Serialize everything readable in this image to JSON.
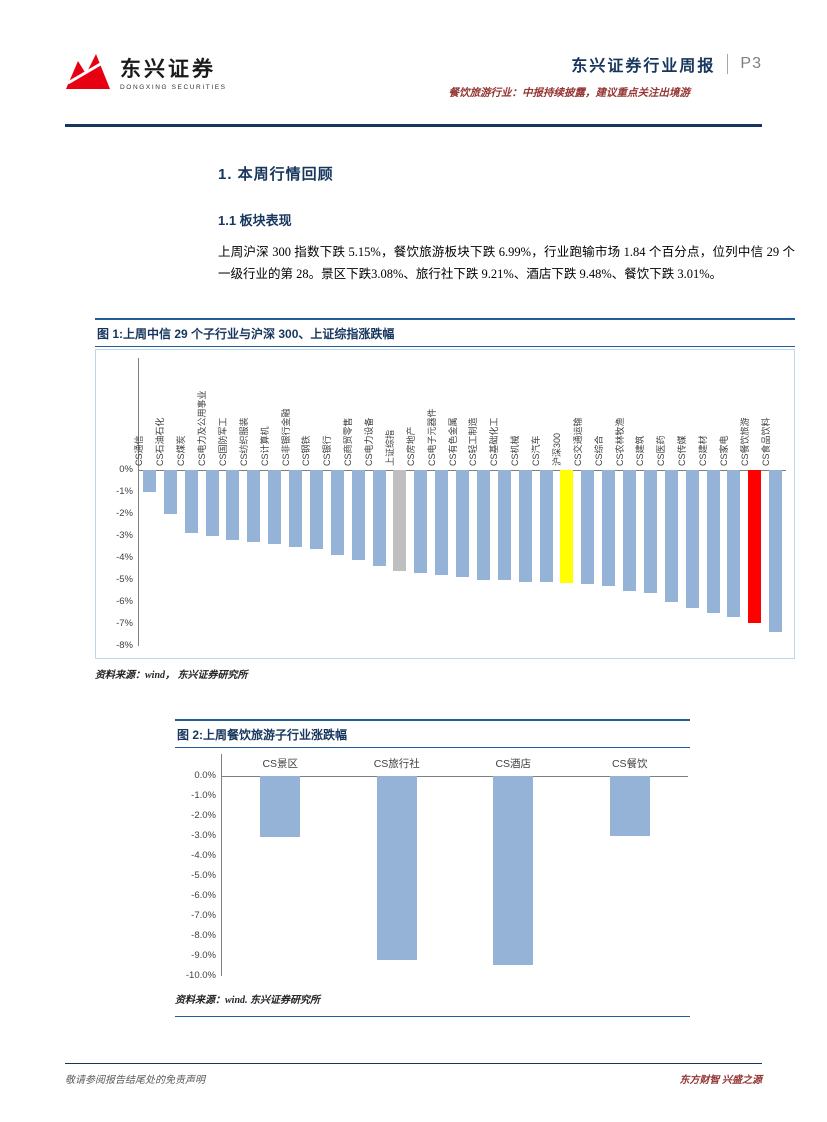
{
  "colors": {
    "navy": "#17365D",
    "rule_blue": "#1F5C99",
    "bar_blue": "#95B3D7",
    "bar_gray": "#BFBFBF",
    "bar_yellow": "#FFFF00",
    "bar_red": "#FF0000",
    "maroon": "#943634",
    "logo_red": "#E60012"
  },
  "header": {
    "logo_cn": "东兴证券",
    "logo_en": "DONGXING SECURITIES",
    "report_title": "东兴证券行业周报",
    "page_number": "P3",
    "subtitle": "餐饮旅游行业：中报持续披露，建议重点关注出境游"
  },
  "body": {
    "section_title": "1. 本周行情回顾",
    "subsection_title": "1.1 板块表现",
    "paragraph": "上周沪深 300 指数下跌 5.15%，餐饮旅游板块下跌 6.99%，行业跑输市场 1.84 个百分点，位列中信 29 个一级行业的第 28。景区下跌3.08%、旅行社下跌 9.21%、酒店下跌 9.48%、餐饮下跌 3.01%。"
  },
  "figures": {
    "fig1": {
      "caption": "图 1:上周中信 29 个子行业与沪深 300、上证综指涨跌幅",
      "source": "资料来源：wind， 东兴证券研究所"
    },
    "fig2": {
      "caption": "图 2:上周餐饮旅游子行业涨跌幅",
      "source": "资料来源：wind. 东兴证券研究所"
    }
  },
  "chart_data": [
    {
      "type": "bar",
      "title": "上周中信29个子行业与沪深300、上证综指涨跌幅",
      "categories": [
        "CS通信",
        "CS石油石化",
        "CS煤炭",
        "CS电力及公用事业",
        "CS国防军工",
        "CS纺织服装",
        "CS计算机",
        "CS非银行金融",
        "CS钢铁",
        "CS银行",
        "CS商贸零售",
        "CS电力设备",
        "上证综指",
        "CS房地产",
        "CS电子元器件",
        "CS有色金属",
        "CS轻工制造",
        "CS基础化工",
        "CS机械",
        "CS汽车",
        "沪深300",
        "CS交通运输",
        "CS综合",
        "CS农林牧渔",
        "CS建筑",
        "CS医药",
        "CS传媒",
        "CS建材",
        "CS家电",
        "CS餐饮旅游",
        "CS食品饮料"
      ],
      "values": [
        -1.0,
        -2.0,
        -2.9,
        -3.0,
        -3.2,
        -3.3,
        -3.4,
        -3.5,
        -3.6,
        -3.9,
        -4.1,
        -4.4,
        -4.6,
        -4.7,
        -4.8,
        -4.9,
        -5.0,
        -5.0,
        -5.1,
        -5.1,
        -5.15,
        -5.2,
        -5.3,
        -5.5,
        -5.6,
        -6.0,
        -6.3,
        -6.5,
        -6.7,
        -6.99,
        -7.4
      ],
      "unit": "%",
      "default_color": "#95B3D7",
      "color_overrides": {
        "12": "#BFBFBF",
        "20": "#FFFF00",
        "29": "#FF0000"
      },
      "ylim": [
        0,
        -8
      ],
      "yticks": [
        "0%",
        "-1%",
        "-2%",
        "-3%",
        "-4%",
        "-5%",
        "-6%",
        "-7%",
        "-8%"
      ],
      "grid": false,
      "legend": "none",
      "xlabel": "",
      "ylabel": ""
    },
    {
      "type": "bar",
      "title": "上周餐饮旅游子行业涨跌幅",
      "categories": [
        "CS景区",
        "CS旅行社",
        "CS酒店",
        "CS餐饮"
      ],
      "values": [
        -3.08,
        -9.21,
        -9.48,
        -3.01
      ],
      "unit": "%",
      "default_color": "#95B3D7",
      "color_overrides": {},
      "ylim": [
        0,
        -10
      ],
      "yticks": [
        "0.0%",
        "-1.0%",
        "-2.0%",
        "-3.0%",
        "-4.0%",
        "-5.0%",
        "-6.0%",
        "-7.0%",
        "-8.0%",
        "-9.0%",
        "-10.0%"
      ],
      "grid": false,
      "legend": "none",
      "xlabel": "",
      "ylabel": ""
    }
  ],
  "footer": {
    "left": "敬请参阅报告结尾处的免责声明",
    "right": "东方财智 兴盛之源"
  }
}
